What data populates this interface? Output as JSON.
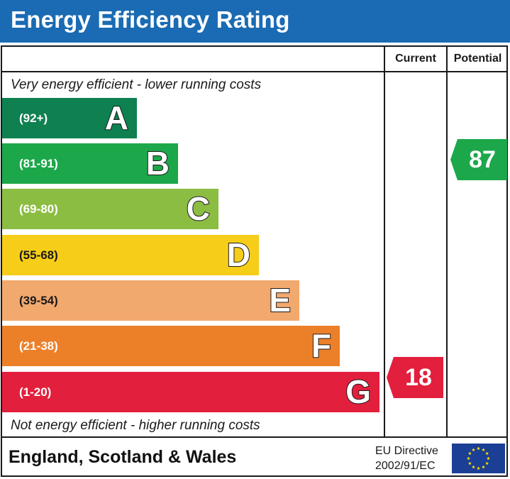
{
  "title": "Energy Efficiency Rating",
  "columns": {
    "current": "Current",
    "potential": "Potential"
  },
  "top_note": "Very energy efficient - lower running costs",
  "bottom_note": "Not energy efficient - higher running costs",
  "bands": [
    {
      "letter": "A",
      "range": "(92+)",
      "color": "#0f8050"
    },
    {
      "letter": "B",
      "range": "(81-91)",
      "color": "#1ca74a"
    },
    {
      "letter": "C",
      "range": "(69-80)",
      "color": "#8cbd43"
    },
    {
      "letter": "D",
      "range": "(55-68)",
      "color": "#f6cd18"
    },
    {
      "letter": "E",
      "range": "(39-54)",
      "color": "#f2a96e"
    },
    {
      "letter": "F",
      "range": "(21-38)",
      "color": "#ec8029"
    },
    {
      "letter": "G",
      "range": "(1-20)",
      "color": "#e21f3c"
    }
  ],
  "current": {
    "value": "18",
    "band": "G",
    "color": "#e21f3c"
  },
  "potential": {
    "value": "87",
    "band": "B",
    "color": "#1ca74a"
  },
  "footer": {
    "country": "England, Scotland & Wales",
    "directive_line1": "EU Directive",
    "directive_line2": "2002/91/EC",
    "flag_color": "#1b3f94",
    "star_color": "#ffdd00"
  }
}
